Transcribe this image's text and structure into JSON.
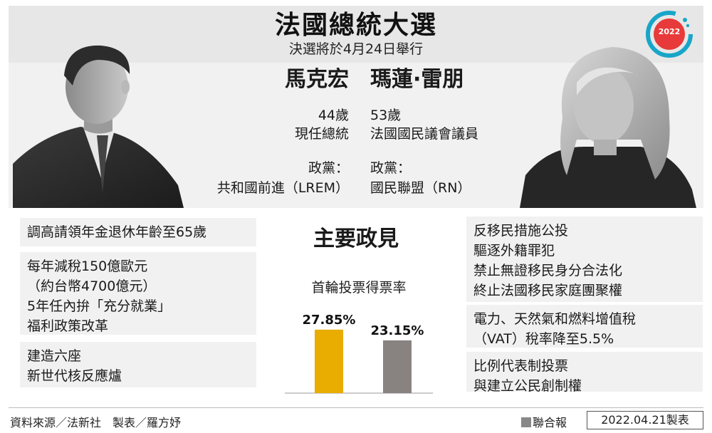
{
  "header": {
    "title": "法國總統大選",
    "subtitle": "決選將於4月24日舉行",
    "badge_year": "2022"
  },
  "candidates": {
    "left": {
      "name": "馬克宏",
      "age": "44歲",
      "role": "現任總統",
      "party_label": "政黨：",
      "party": "共和國前進（LREM）",
      "photo": "emmanuel-macron-portrait"
    },
    "right": {
      "name": "瑪蓮·雷朋",
      "age": "53歲",
      "role": "法國國民議會議員",
      "party_label": "政黨：",
      "party": "國民聯盟（RN）",
      "photo": "marine-le-pen-portrait"
    }
  },
  "policies": {
    "title": "主要政見",
    "left": [
      [
        "調高請領年金退休年齡至65歲"
      ],
      [
        "每年減稅150億歐元",
        "（約台幣4700億元）",
        "5年任內拚「充分就業」",
        "福利政策改革"
      ],
      [
        "建造六座",
        "新世代核反應爐"
      ]
    ],
    "right": [
      [
        "反移民措施公投",
        "驅逐外籍罪犯",
        "禁止無證移民身分合法化",
        "終止法國移民家庭團聚權"
      ],
      [
        "電力、天然氣和燃料增值稅",
        "（VAT）稅率降至5.5%"
      ],
      [
        "比例代表制投票",
        "與建立公民創制權"
      ]
    ]
  },
  "chart_data": {
    "type": "bar",
    "title": "首輪投票得票率",
    "categories": [
      "馬克宏",
      "瑪蓮·雷朋"
    ],
    "values": [
      27.85,
      23.15
    ],
    "labels": [
      "27.85%",
      "23.15%"
    ],
    "colors": [
      "#e8ad00",
      "#888380"
    ],
    "ylim": [
      0,
      30
    ],
    "show_category_labels": false,
    "grid": false,
    "legend": "none"
  },
  "footer": {
    "source": "資料來源／法新社　製表／羅方妤",
    "publisher": "聯合報",
    "date": "2022.04.21製表"
  },
  "colors": {
    "header_bg": "#e7e7e7",
    "panel_bg": "#f1f1f1",
    "badge_red": "#e83a3a",
    "badge_teal": "#18a6c8"
  }
}
